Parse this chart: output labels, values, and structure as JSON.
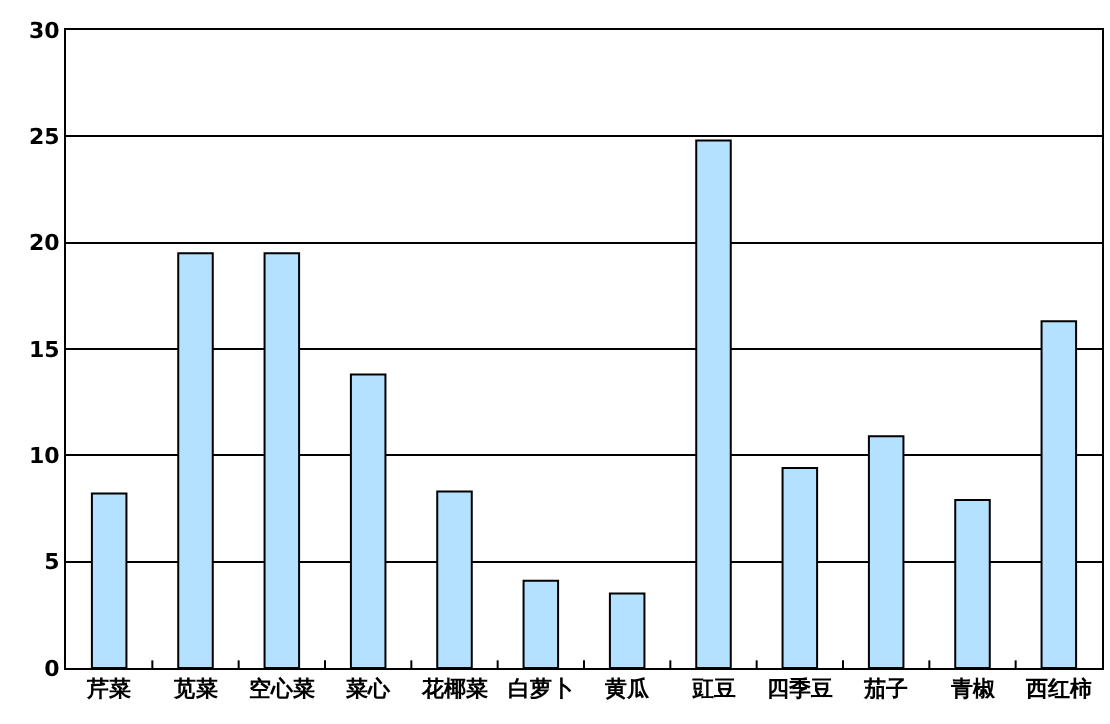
{
  "chart_data": {
    "type": "bar",
    "categories": [
      "芹菜",
      "苋菜",
      "空心菜",
      "菜心",
      "花椰菜",
      "白萝卜",
      "黄瓜",
      "豇豆",
      "四季豆",
      "茄子",
      "青椒",
      "西红柿"
    ],
    "values": [
      8.2,
      19.5,
      19.5,
      13.8,
      8.3,
      4.1,
      3.5,
      24.8,
      9.4,
      10.9,
      7.9,
      16.3
    ],
    "color": "#b3e1ff",
    "ylim": [
      0,
      30
    ],
    "yticks": [
      0,
      5,
      10,
      15,
      20,
      25,
      30
    ],
    "grid": "y"
  }
}
